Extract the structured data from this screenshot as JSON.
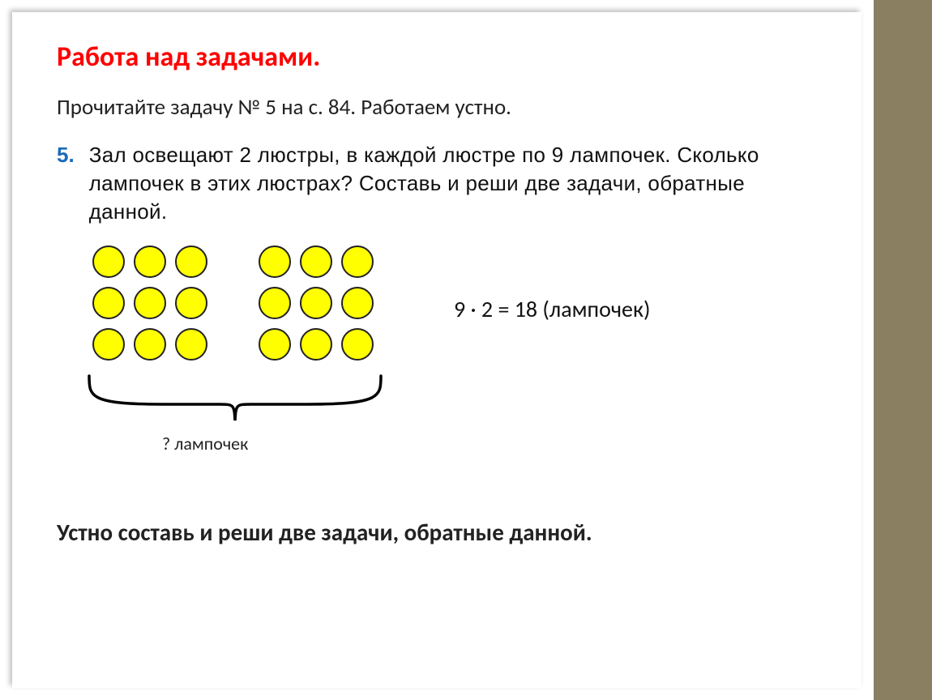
{
  "colors": {
    "title": "#ff0000",
    "task_number": "#1a6bb8",
    "bulb_fill": "#ffff00",
    "bulb_stroke": "#222222",
    "sidebar": "#8a8061",
    "text": "#111111"
  },
  "title": "Работа над задачами.",
  "subtitle": "Прочитайте задачу № 5 на с. 84. Работаем устно.",
  "task": {
    "number": "5.",
    "text": "Зал освещают 2 люстры, в каждой люстре по 9 лампочек. Сколько лампочек в этих люстрах? Составь и реши две задачи, обратные данной."
  },
  "diagram": {
    "groups": 2,
    "rows": 3,
    "cols": 3,
    "bulb_fill": "#ffff00",
    "bulb_stroke": "#222222",
    "bulb_radius": 20,
    "label": "? лампочек"
  },
  "equation": "9 · 2 = 18 (лампочек)",
  "bottom": "Устно составь и реши две задачи, обратные данной."
}
